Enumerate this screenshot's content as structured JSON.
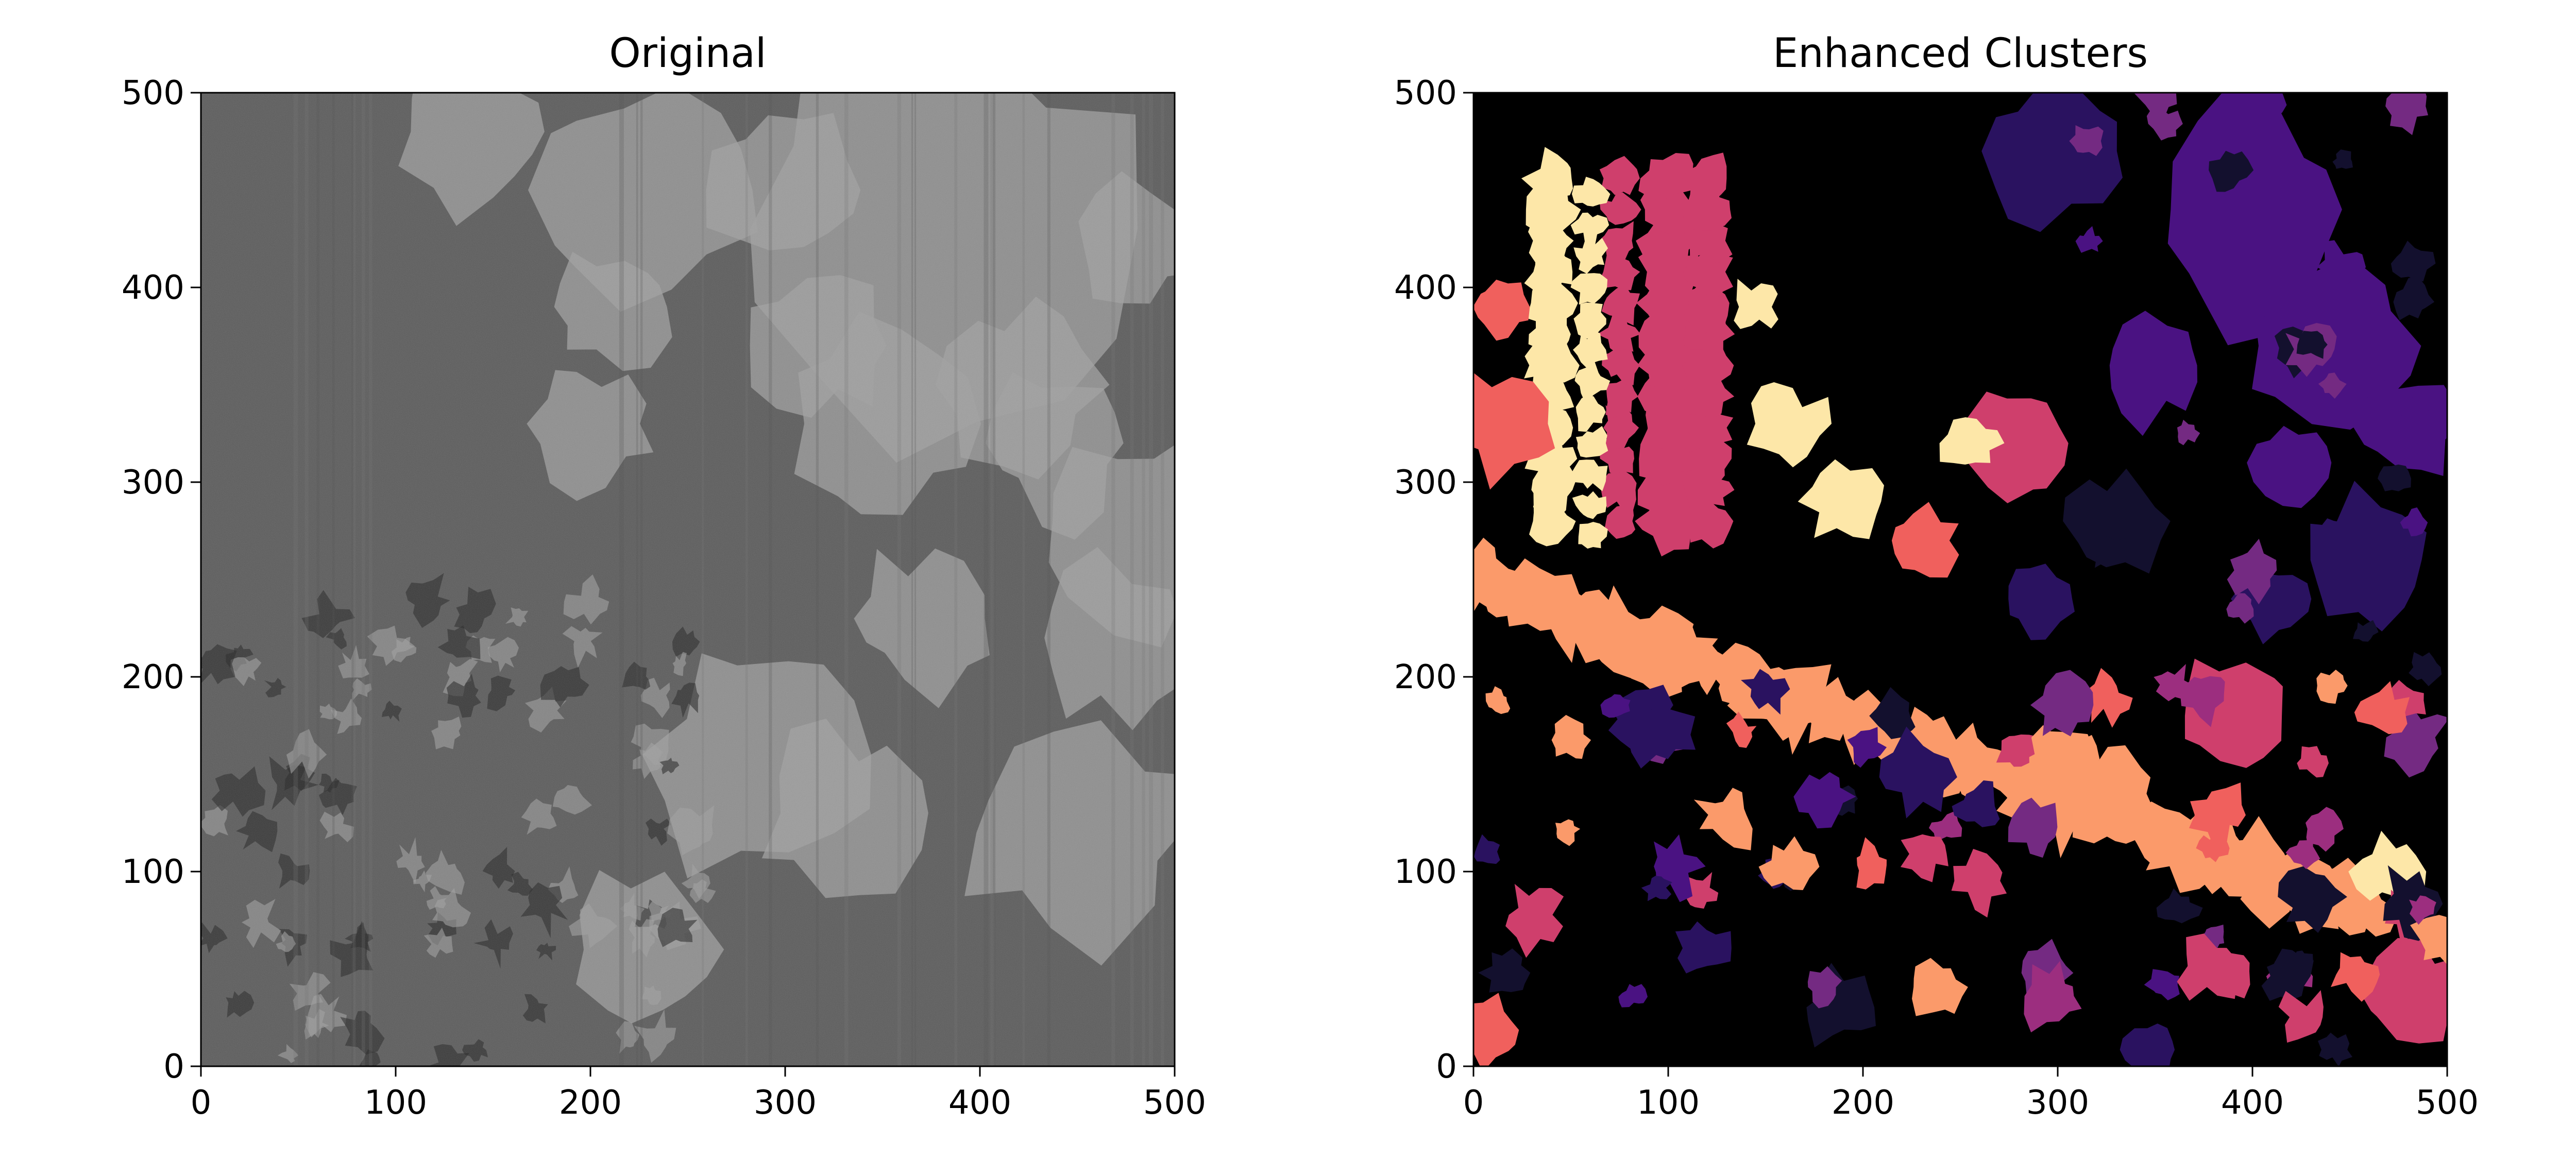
{
  "chart_data": [
    {
      "type": "image",
      "title": "Original",
      "xlim": [
        0,
        500
      ],
      "ylim": [
        0,
        500
      ],
      "xticks": [
        "0",
        "100",
        "200",
        "300",
        "400",
        "500"
      ],
      "yticks": [
        "0",
        "100",
        "200",
        "300",
        "400",
        "500"
      ],
      "colormap": "gray",
      "background_color": "#5c5c5c",
      "dark_color": "#252525",
      "light_color": "#a0a0a0"
    },
    {
      "type": "image",
      "title": "Enhanced Clusters",
      "xlim": [
        0,
        500
      ],
      "ylim": [
        0,
        500
      ],
      "xticks": [
        "0",
        "100",
        "200",
        "300",
        "400",
        "500"
      ],
      "yticks": [
        "0",
        "100",
        "200",
        "300",
        "400",
        "500"
      ],
      "colormap": "magma",
      "background_color": "#000000",
      "cluster_colors": [
        "#13102e",
        "#2a1260",
        "#4a1282",
        "#742a82",
        "#9c2e7f",
        "#cf3f6c",
        "#f0605d",
        "#fb9a6a",
        "#fde7a8"
      ]
    }
  ]
}
